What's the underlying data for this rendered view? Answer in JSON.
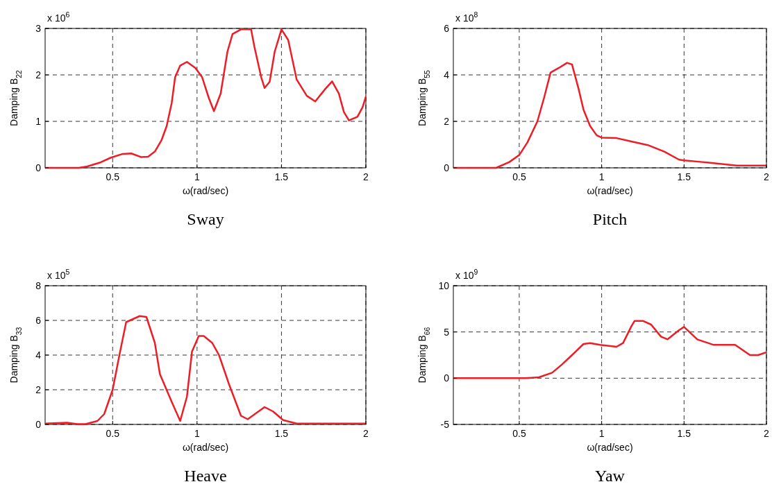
{
  "chart_data": [
    {
      "type": "line",
      "title": "Sway",
      "xlabel": "ω(rad/sec)",
      "ylabel": "Damping B$_{22}$",
      "annotations": [
        "x 10$^{6}$"
      ],
      "xlim": [
        0.1,
        2
      ],
      "xticks": [
        0.5,
        1,
        1.5,
        2
      ],
      "ylim": [
        0,
        3
      ],
      "yticks": [
        0,
        1,
        2,
        3
      ],
      "grid": true,
      "line_style": "solid",
      "series": [
        {
          "color": "#ee1c25",
          "x": [
            0.1,
            0.3,
            0.35,
            0.43,
            0.49,
            0.56,
            0.61,
            0.67,
            0.71,
            0.75,
            0.79,
            0.82,
            0.85,
            0.87,
            0.9,
            0.94,
            0.99,
            1.03,
            1.07,
            1.1,
            1.14,
            1.18,
            1.21,
            1.26,
            1.32,
            1.34,
            1.38,
            1.4,
            1.43,
            1.46,
            1.5,
            1.54,
            1.59,
            1.65,
            1.7,
            1.76,
            1.8,
            1.84,
            1.87,
            1.9,
            1.95,
            1.98,
            2.0
          ],
          "values": [
            0,
            0,
            0.03,
            0.12,
            0.22,
            0.3,
            0.31,
            0.23,
            0.24,
            0.35,
            0.6,
            0.9,
            1.4,
            1.95,
            2.2,
            2.28,
            2.15,
            1.95,
            1.5,
            1.22,
            1.6,
            2.5,
            2.88,
            2.98,
            2.98,
            2.6,
            1.95,
            1.72,
            1.85,
            2.5,
            2.98,
            2.75,
            1.9,
            1.55,
            1.43,
            1.7,
            1.86,
            1.6,
            1.2,
            1.02,
            1.1,
            1.3,
            1.53
          ]
        }
      ]
    },
    {
      "type": "line",
      "title": "Pitch",
      "xlabel": "ω(rad/sec)",
      "ylabel": "Damping B$_{55}$",
      "annotations": [
        "x 10$^{8}$"
      ],
      "xlim": [
        0.1,
        2
      ],
      "xticks": [
        0.5,
        1,
        1.5,
        2
      ],
      "ylim": [
        0,
        6
      ],
      "yticks": [
        0,
        2,
        4,
        6
      ],
      "grid": true,
      "line_style": "solid",
      "series": [
        {
          "color": "#ee1c25",
          "x": [
            0.1,
            0.36,
            0.44,
            0.5,
            0.55,
            0.61,
            0.65,
            0.69,
            0.74,
            0.79,
            0.82,
            0.86,
            0.89,
            0.93,
            0.97,
            1.0,
            1.09,
            1.19,
            1.28,
            1.38,
            1.47,
            1.5,
            1.61,
            1.82,
            2.0
          ],
          "values": [
            0,
            0,
            0.25,
            0.55,
            1.1,
            2.0,
            3.0,
            4.1,
            4.3,
            4.52,
            4.45,
            3.4,
            2.5,
            1.8,
            1.4,
            1.3,
            1.28,
            1.12,
            0.98,
            0.7,
            0.35,
            0.32,
            0.25,
            0.1,
            0.1
          ]
        }
      ]
    },
    {
      "type": "line",
      "title": "Heave",
      "xlabel": "ω(rad/sec)",
      "ylabel": "Damping B$_{33}$",
      "annotations": [
        "x 10$^{5}$"
      ],
      "xlim": [
        0.1,
        2
      ],
      "xticks": [
        0.5,
        1,
        1.5,
        2
      ],
      "ylim": [
        0,
        8
      ],
      "yticks": [
        0,
        2,
        4,
        6,
        8
      ],
      "grid": true,
      "line_style": "solid",
      "series": [
        {
          "color": "#ee1c25",
          "x": [
            0.1,
            0.23,
            0.29,
            0.34,
            0.41,
            0.45,
            0.5,
            0.54,
            0.58,
            0.66,
            0.7,
            0.75,
            0.78,
            0.85,
            0.9,
            0.94,
            0.97,
            1.01,
            1.04,
            1.09,
            1.13,
            1.19,
            1.26,
            1.3,
            1.4,
            1.45,
            1.51,
            1.59,
            1.76,
            2.0
          ],
          "values": [
            0.05,
            0.1,
            0.02,
            0.02,
            0.2,
            0.6,
            2.0,
            4.0,
            5.9,
            6.25,
            6.2,
            4.7,
            2.9,
            1.3,
            0.2,
            1.6,
            4.2,
            5.1,
            5.1,
            4.7,
            4.0,
            2.3,
            0.5,
            0.3,
            1.0,
            0.75,
            0.25,
            0.05,
            0.05,
            0.05
          ]
        }
      ]
    },
    {
      "type": "line",
      "title": "Yaw",
      "xlabel": "ω(rad/sec)",
      "ylabel": "Damping B$_{66}$",
      "annotations": [
        "x 10$^{9}$"
      ],
      "xlim": [
        0.1,
        2
      ],
      "xticks": [
        0.5,
        1,
        1.5,
        2
      ],
      "ylim": [
        -5,
        10
      ],
      "yticks": [
        -5,
        0,
        5,
        10
      ],
      "grid": true,
      "line_style": "solid",
      "series": [
        {
          "color": "#ee1c25",
          "x": [
            0.1,
            0.54,
            0.62,
            0.7,
            0.76,
            0.82,
            0.89,
            0.93,
            0.99,
            1.09,
            1.13,
            1.18,
            1.2,
            1.25,
            1.3,
            1.36,
            1.4,
            1.47,
            1.5,
            1.58,
            1.68,
            1.81,
            1.9,
            1.95,
            2.0
          ],
          "values": [
            0,
            0,
            0.1,
            0.6,
            1.5,
            2.5,
            3.7,
            3.8,
            3.6,
            3.4,
            3.8,
            5.6,
            6.2,
            6.2,
            5.8,
            4.5,
            4.2,
            5.2,
            5.55,
            4.2,
            3.6,
            3.6,
            2.5,
            2.5,
            2.8
          ]
        }
      ]
    }
  ]
}
